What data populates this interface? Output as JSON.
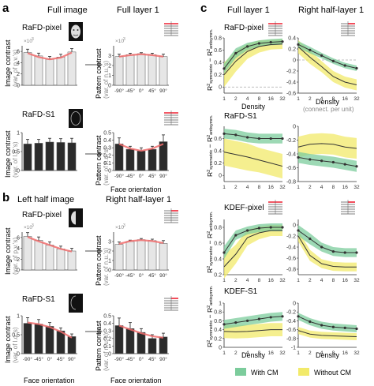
{
  "panels": {
    "a": {
      "letter": "a",
      "col_left": "Full image",
      "col_right": "Full layer 1",
      "row1_label": "RaFD-pixel",
      "row2_label": "RaFD-S1"
    },
    "b": {
      "letter": "b",
      "col_left": "Left half image",
      "col_right": "Right half-layer 1",
      "row1_label": "RaFD-pixel",
      "row2_label": "RaFD-S1"
    },
    "c": {
      "letter": "c",
      "col_left": "Full layer 1",
      "col_right": "Right half-layer 1",
      "rows": [
        "RaFD-pixel",
        "RaFD-S1",
        "KDEF-pixel",
        "KDEF-S1"
      ]
    }
  },
  "labels": {
    "image_contrast": "Image contrast",
    "pattern_contrast": "Pattern contrast",
    "unit_pv": "(var. of p.v.'s)",
    "unit_lo": "(var. of l.o.'s)",
    "unit_nu": "(var. of n.u.'s)",
    "face_orientation": "Face orientation",
    "density": "Density",
    "connect_per_unit": "(connect. per unit)",
    "exp_label": "×10",
    "exp_power": "3",
    "ylabel_c_main": "R",
    "ylabel_c_sup": "2",
    "ylabel_c_sub1": "symmetric",
    "ylabel_c_sub2": "antisymm.",
    "ylabel_c_minus": " − R"
  },
  "legend": {
    "with_cm": "With CM",
    "without_cm": "Without CM",
    "with_color": "#7ccc9c",
    "without_color": "#f2ea6a"
  },
  "colors": {
    "bar_light": "#e6e6e6",
    "bar_dark": "#2b2b2b",
    "fit_red": "#f06c6c",
    "line": "#333333",
    "dash": "#aaaaaa"
  },
  "chart_data": [
    {
      "id": "a-pixel-img",
      "type": "bar",
      "categories": [
        "-90°",
        "-45°",
        "0°",
        "45°",
        "90°"
      ],
      "values": [
        5.8,
        5.2,
        4.6,
        5.0,
        5.9
      ],
      "errors": [
        0.6,
        0.5,
        0.5,
        0.5,
        0.6
      ],
      "fit": [
        5.7,
        5.0,
        4.6,
        4.9,
        5.8
      ],
      "ylim": [
        0,
        7
      ],
      "yticks": [
        0,
        2,
        4,
        6
      ],
      "style": "light",
      "exponent": true,
      "xticks": false
    },
    {
      "id": "a-pixel-pat",
      "type": "bar",
      "categories": [
        "-90°",
        "-45°",
        "0°",
        "45°",
        "90°"
      ],
      "values": [
        2.9,
        3.1,
        3.2,
        3.1,
        2.9
      ],
      "errors": [
        0.25,
        0.15,
        0.1,
        0.15,
        0.25
      ],
      "fit": [
        2.9,
        3.05,
        3.15,
        3.05,
        2.9
      ],
      "ylim": [
        0,
        4
      ],
      "yticks": [
        0,
        1,
        2,
        3
      ],
      "style": "light",
      "exponent": true,
      "xticks": true
    },
    {
      "id": "a-s1-img",
      "type": "bar",
      "categories": [
        "-90°",
        "-45°",
        "0°",
        "45°",
        "90°"
      ],
      "values": [
        0.7,
        0.72,
        0.75,
        0.74,
        0.73
      ],
      "errors": [
        0.12,
        0.1,
        0.1,
        0.1,
        0.12
      ],
      "fit": null,
      "ylim": [
        0,
        1
      ],
      "yticks": [
        0,
        0.5,
        1
      ],
      "style": "dark",
      "exponent": false,
      "xticks": false
    },
    {
      "id": "a-s1-pat",
      "type": "bar",
      "categories": [
        "-90°",
        "-45°",
        "0°",
        "45°",
        "90°"
      ],
      "values": [
        0.35,
        0.28,
        0.26,
        0.28,
        0.38
      ],
      "errors": [
        0.08,
        0.04,
        0.04,
        0.04,
        0.09
      ],
      "fit": [
        0.35,
        0.29,
        0.26,
        0.29,
        0.35
      ],
      "ylim": [
        0,
        0.5
      ],
      "yticks": [
        0,
        0.1,
        0.2,
        0.3,
        0.4,
        0.5
      ],
      "style": "dark",
      "exponent": false,
      "xticks": true
    },
    {
      "id": "b-pixel-img",
      "type": "bar",
      "categories": [
        "-90°",
        "-45°",
        "0°",
        "45°",
        "90°"
      ],
      "values": [
        6.2,
        5.5,
        4.6,
        3.9,
        3.5
      ],
      "errors": [
        0.7,
        0.6,
        0.6,
        0.5,
        0.5
      ],
      "fit": [
        6.1,
        5.3,
        4.6,
        3.9,
        3.4
      ],
      "ylim": [
        0,
        7
      ],
      "yticks": [
        0,
        2,
        4,
        6
      ],
      "style": "light",
      "exponent": true,
      "xticks": false
    },
    {
      "id": "b-pixel-pat",
      "type": "bar",
      "categories": [
        "-90°",
        "-45°",
        "0°",
        "45°",
        "90°"
      ],
      "values": [
        2.7,
        3.0,
        3.2,
        3.1,
        2.8
      ],
      "errors": [
        0.25,
        0.15,
        0.12,
        0.15,
        0.3
      ],
      "fit": [
        2.75,
        3.05,
        3.15,
        3.05,
        2.85
      ],
      "ylim": [
        0,
        4
      ],
      "yticks": [
        0,
        1,
        2,
        3
      ],
      "style": "light",
      "exponent": true,
      "xticks": true
    },
    {
      "id": "b-s1-img",
      "type": "bar",
      "categories": [
        "-90°",
        "-45°",
        "0°",
        "45°",
        "90°"
      ],
      "values": [
        0.8,
        0.78,
        0.72,
        0.6,
        0.45
      ],
      "errors": [
        0.15,
        0.12,
        0.1,
        0.08,
        0.07
      ],
      "fit": [
        0.82,
        0.78,
        0.7,
        0.58,
        0.42
      ],
      "ylim": [
        0,
        1
      ],
      "yticks": [
        0,
        0.5,
        1
      ],
      "style": "dark",
      "exponent": false,
      "xticks": true
    },
    {
      "id": "b-s1-pat",
      "type": "bar",
      "categories": [
        "-90°",
        "-45°",
        "0°",
        "45°",
        "90°"
      ],
      "values": [
        0.37,
        0.33,
        0.28,
        0.2,
        0.22
      ],
      "errors": [
        0.1,
        0.08,
        0.05,
        0.05,
        0.05
      ],
      "fit": [
        0.37,
        0.32,
        0.27,
        0.23,
        0.21
      ],
      "ylim": [
        0,
        0.5
      ],
      "yticks": [
        0,
        0.1,
        0.2,
        0.3,
        0.4,
        0.5
      ],
      "style": "dark",
      "exponent": false,
      "xticks": true
    },
    {
      "id": "c-rafd-pixel-full",
      "type": "line",
      "x": [
        1,
        2,
        4,
        8,
        16,
        32
      ],
      "xticks": [
        "1",
        "2",
        "4",
        "8",
        "16",
        "32"
      ],
      "with_cm": [
        0.3,
        0.55,
        0.66,
        0.71,
        0.73,
        0.74
      ],
      "with_cm_band": [
        0.08,
        0.08,
        0.06,
        0.05,
        0.05,
        0.05
      ],
      "without_cm": [
        0.2,
        0.42,
        0.58,
        0.66,
        0.69,
        0.7
      ],
      "without_cm_band": [
        0.2,
        0.17,
        0.12,
        0.1,
        0.08,
        0.08
      ],
      "ylim": [
        -0.1,
        0.8
      ],
      "yticks": [
        0,
        0.2,
        0.4,
        0.6,
        0.8
      ],
      "dashed": 0,
      "show_xlabel": true
    },
    {
      "id": "c-rafd-pixel-half",
      "type": "line",
      "x": [
        1,
        2,
        4,
        8,
        16,
        32
      ],
      "xticks": [
        "1",
        "2",
        "4",
        "8",
        "16",
        "32"
      ],
      "with_cm": [
        0.28,
        0.18,
        0.08,
        -0.02,
        -0.1,
        -0.15
      ],
      "with_cm_band": [
        0.06,
        0.06,
        0.05,
        0.05,
        0.05,
        0.05
      ],
      "without_cm": [
        0.24,
        0.05,
        -0.12,
        -0.3,
        -0.4,
        -0.45
      ],
      "without_cm_band": [
        0.12,
        0.12,
        0.1,
        0.1,
        0.1,
        0.1
      ],
      "ylim": [
        -0.6,
        0.4
      ],
      "yticks": [
        -0.6,
        -0.4,
        -0.2,
        0,
        0.2,
        0.4
      ],
      "dashed": 0,
      "show_xlabel": true
    },
    {
      "id": "c-rafd-s1-full",
      "type": "line",
      "x": [
        1,
        2,
        4,
        8,
        16,
        32
      ],
      "xticks": [
        "1",
        "2",
        "4",
        "8",
        "16",
        "32"
      ],
      "with_cm": [
        0.68,
        0.66,
        0.62,
        0.6,
        0.6,
        0.6
      ],
      "with_cm_band": [
        0.08,
        0.08,
        0.08,
        0.08,
        0.08,
        0.08
      ],
      "without_cm": [
        0.38,
        0.34,
        0.3,
        0.25,
        0.2,
        0.15
      ],
      "without_cm_band": [
        0.22,
        0.22,
        0.22,
        0.2,
        0.2,
        0.2
      ],
      "ylim": [
        -0.1,
        0.8
      ],
      "yticks": [
        0,
        0.2,
        0.4,
        0.6
      ],
      "dashed": null,
      "show_xlabel": false
    },
    {
      "id": "c-rafd-s1-half",
      "type": "line",
      "x": [
        1,
        2,
        4,
        8,
        16,
        32
      ],
      "xticks": [
        "1",
        "2",
        "4",
        "8",
        "16",
        "32"
      ],
      "with_cm": [
        -0.45,
        -0.48,
        -0.5,
        -0.52,
        -0.55,
        -0.58
      ],
      "with_cm_band": [
        0.08,
        0.08,
        0.08,
        0.08,
        0.08,
        0.08
      ],
      "without_cm": [
        -0.3,
        -0.26,
        -0.25,
        -0.26,
        -0.3,
        -0.32
      ],
      "without_cm_band": [
        0.15,
        0.15,
        0.15,
        0.15,
        0.15,
        0.15
      ],
      "ylim": [
        -0.8,
        0
      ],
      "yticks": [
        -0.8,
        -0.6,
        -0.4,
        -0.2,
        0
      ],
      "dashed": null,
      "show_xlabel": false
    },
    {
      "id": "c-kdef-pixel-full",
      "type": "line",
      "x": [
        1,
        2,
        4,
        8,
        16,
        32
      ],
      "xticks": [
        "1",
        "2",
        "4",
        "8",
        "16",
        "32"
      ],
      "with_cm": [
        0.48,
        0.7,
        0.76,
        0.79,
        0.8,
        0.8
      ],
      "with_cm_band": [
        0.08,
        0.06,
        0.05,
        0.05,
        0.05,
        0.05
      ],
      "without_cm": [
        0.3,
        0.46,
        0.67,
        0.73,
        0.76,
        0.76
      ],
      "without_cm_band": [
        0.15,
        0.12,
        0.1,
        0.08,
        0.07,
        0.07
      ],
      "ylim": [
        0.2,
        0.9
      ],
      "yticks": [
        0.2,
        0.4,
        0.6,
        0.8
      ],
      "dashed": null,
      "show_xlabel": false
    },
    {
      "id": "c-kdef-pixel-half",
      "type": "line",
      "x": [
        1,
        2,
        4,
        8,
        16,
        32
      ],
      "xticks": [
        "1",
        "2",
        "4",
        "8",
        "16",
        "32"
      ],
      "with_cm": [
        -0.1,
        -0.25,
        -0.4,
        -0.48,
        -0.5,
        -0.5
      ],
      "with_cm_band": [
        0.1,
        0.1,
        0.08,
        0.08,
        0.08,
        0.08
      ],
      "without_cm": [
        -0.2,
        -0.55,
        -0.7,
        -0.75,
        -0.76,
        -0.76
      ],
      "without_cm_band": [
        0.1,
        0.1,
        0.08,
        0.08,
        0.08,
        0.08
      ],
      "ylim": [
        -0.9,
        0.1
      ],
      "yticks": [
        -0.8,
        -0.6,
        -0.4,
        -0.2,
        0
      ],
      "dashed": null,
      "show_xlabel": false
    },
    {
      "id": "c-kdef-s1-full",
      "type": "line",
      "x": [
        1,
        2,
        4,
        8,
        16,
        32
      ],
      "xticks": [
        "1",
        "2",
        "4",
        "8",
        "16",
        "32"
      ],
      "with_cm": [
        0.52,
        0.56,
        0.6,
        0.64,
        0.68,
        0.7
      ],
      "with_cm_band": [
        0.1,
        0.1,
        0.1,
        0.1,
        0.1,
        0.1
      ],
      "without_cm": [
        0.36,
        0.35,
        0.36,
        0.38,
        0.4,
        0.4
      ],
      "without_cm_band": [
        0.15,
        0.15,
        0.15,
        0.15,
        0.15,
        0.15
      ],
      "ylim": [
        0,
        1
      ],
      "yticks": [
        0,
        0.2,
        0.4,
        0.6,
        0.8,
        1
      ],
      "dashed": null,
      "show_xlabel": true
    },
    {
      "id": "c-kdef-s1-half",
      "type": "line",
      "x": [
        1,
        2,
        4,
        8,
        16,
        32
      ],
      "xticks": [
        "1",
        "2",
        "4",
        "8",
        "16",
        "32"
      ],
      "with_cm": [
        -0.3,
        -0.42,
        -0.5,
        -0.54,
        -0.56,
        -0.58
      ],
      "with_cm_band": [
        0.08,
        0.08,
        0.08,
        0.08,
        0.08,
        0.08
      ],
      "without_cm": [
        -0.62,
        -0.7,
        -0.73,
        -0.74,
        -0.75,
        -0.76
      ],
      "without_cm_band": [
        0.08,
        0.08,
        0.08,
        0.08,
        0.08,
        0.08
      ],
      "ylim": [
        -1,
        0
      ],
      "yticks": [
        -1,
        -0.8,
        -0.6,
        -0.4,
        -0.2,
        0
      ],
      "dashed": null,
      "show_xlabel": true
    }
  ]
}
